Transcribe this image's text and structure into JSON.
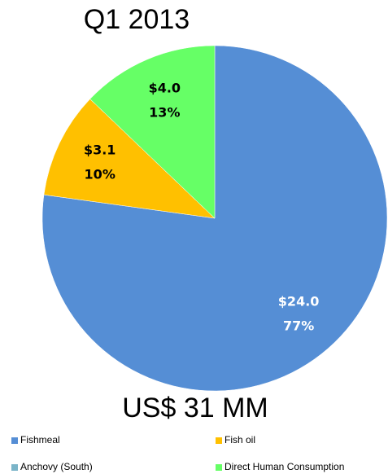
{
  "chart_data": {
    "type": "pie",
    "title": "Q1 2013",
    "categories": [
      "Fishmeal",
      "Fish oil",
      "Anchovy (South)",
      "Direct Human Consumption"
    ],
    "values": [
      24.0,
      3.1,
      0,
      4.0
    ],
    "value_labels": [
      "$24.0",
      "$3.1",
      null,
      "$4.0"
    ],
    "percent_labels": [
      "77%",
      "10%",
      null,
      "13%"
    ],
    "colors": [
      "#558ed5",
      "#ffc000",
      "#7ab4c8",
      "#66ff66"
    ],
    "annotation": "US$ 31 MM",
    "legend": "bottom"
  }
}
